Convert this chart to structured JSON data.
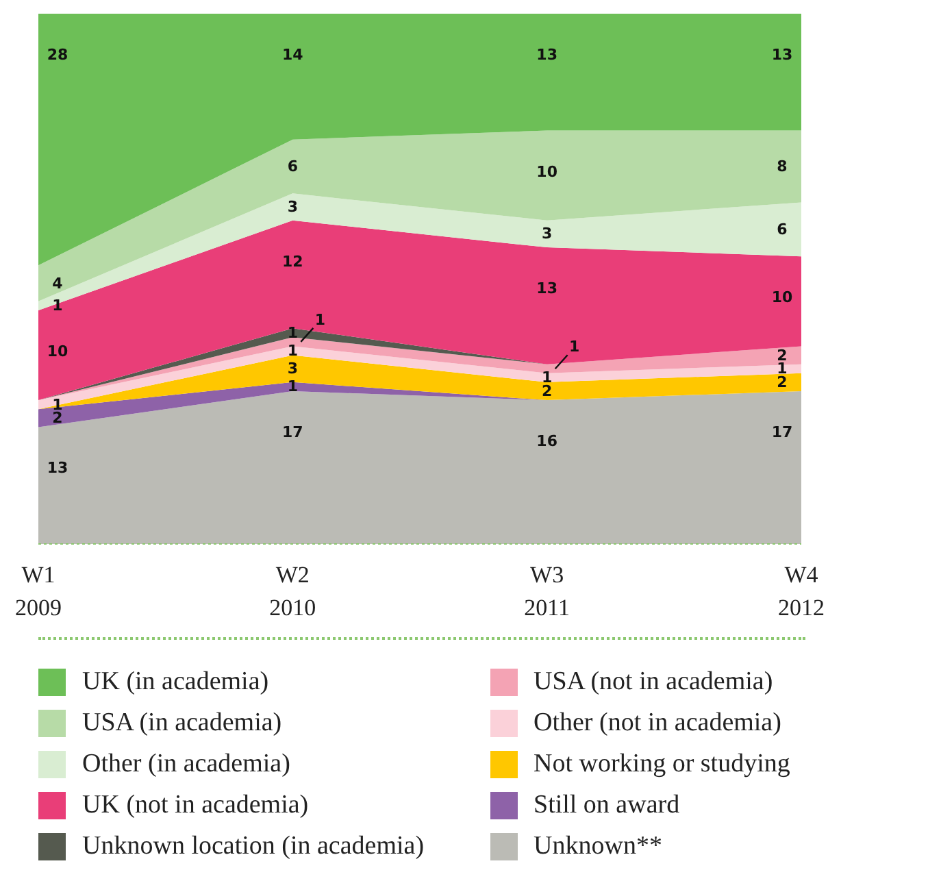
{
  "chart_data": {
    "type": "area",
    "stacked": true,
    "categories": [
      "W1\n2009",
      "W2\n2010",
      "W3\n2011",
      "W4\n2012"
    ],
    "legend": "bottom",
    "grid": false,
    "series": [
      {
        "name": "Unknown**",
        "color": "#bbbbb5",
        "values": [
          13,
          17,
          16,
          17
        ],
        "value_labels": [
          "13",
          "17",
          "16",
          "17"
        ]
      },
      {
        "name": "Still on award",
        "color": "#8e62a8",
        "values": [
          2,
          1,
          0,
          0
        ],
        "value_labels": [
          "2",
          "1",
          null,
          null
        ]
      },
      {
        "name": "Not working or studying",
        "color": "#ffc700",
        "values": [
          0,
          3,
          2,
          2
        ],
        "value_labels": [
          null,
          "3",
          "2",
          "2"
        ]
      },
      {
        "name": "Other (not in academia)",
        "color": "#fbd1d9",
        "values": [
          1,
          1,
          1,
          1
        ],
        "value_labels": [
          "1",
          "1",
          "1",
          "1"
        ]
      },
      {
        "name": "USA (not in academia)",
        "color": "#f4a3b4",
        "values": [
          0,
          1,
          1,
          2
        ],
        "value_labels": [
          null,
          "1",
          "1",
          "2"
        ]
      },
      {
        "name": "Unknown location (in academia)",
        "color": "#555a4f",
        "values": [
          0,
          1,
          0,
          0
        ],
        "value_labels": [
          null,
          "1",
          null,
          null
        ]
      },
      {
        "name": "UK (not in academia)",
        "color": "#e93e78",
        "values": [
          10,
          12,
          13,
          10
        ],
        "value_labels": [
          "10",
          "12",
          "13",
          "10"
        ]
      },
      {
        "name": "Other (in academia)",
        "color": "#d9edd2",
        "values": [
          1,
          3,
          3,
          6
        ],
        "value_labels": [
          "1",
          "3",
          "3",
          "6"
        ]
      },
      {
        "name": "USA (in academia)",
        "color": "#b7dba7",
        "values": [
          4,
          6,
          10,
          8
        ],
        "value_labels": [
          "4",
          "6",
          "10",
          "8"
        ]
      },
      {
        "name": "UK (in academia)",
        "color": "#6dbf57",
        "values": [
          28,
          14,
          13,
          13
        ],
        "value_labels": [
          "28",
          "14",
          "13",
          "13"
        ]
      }
    ]
  }
}
